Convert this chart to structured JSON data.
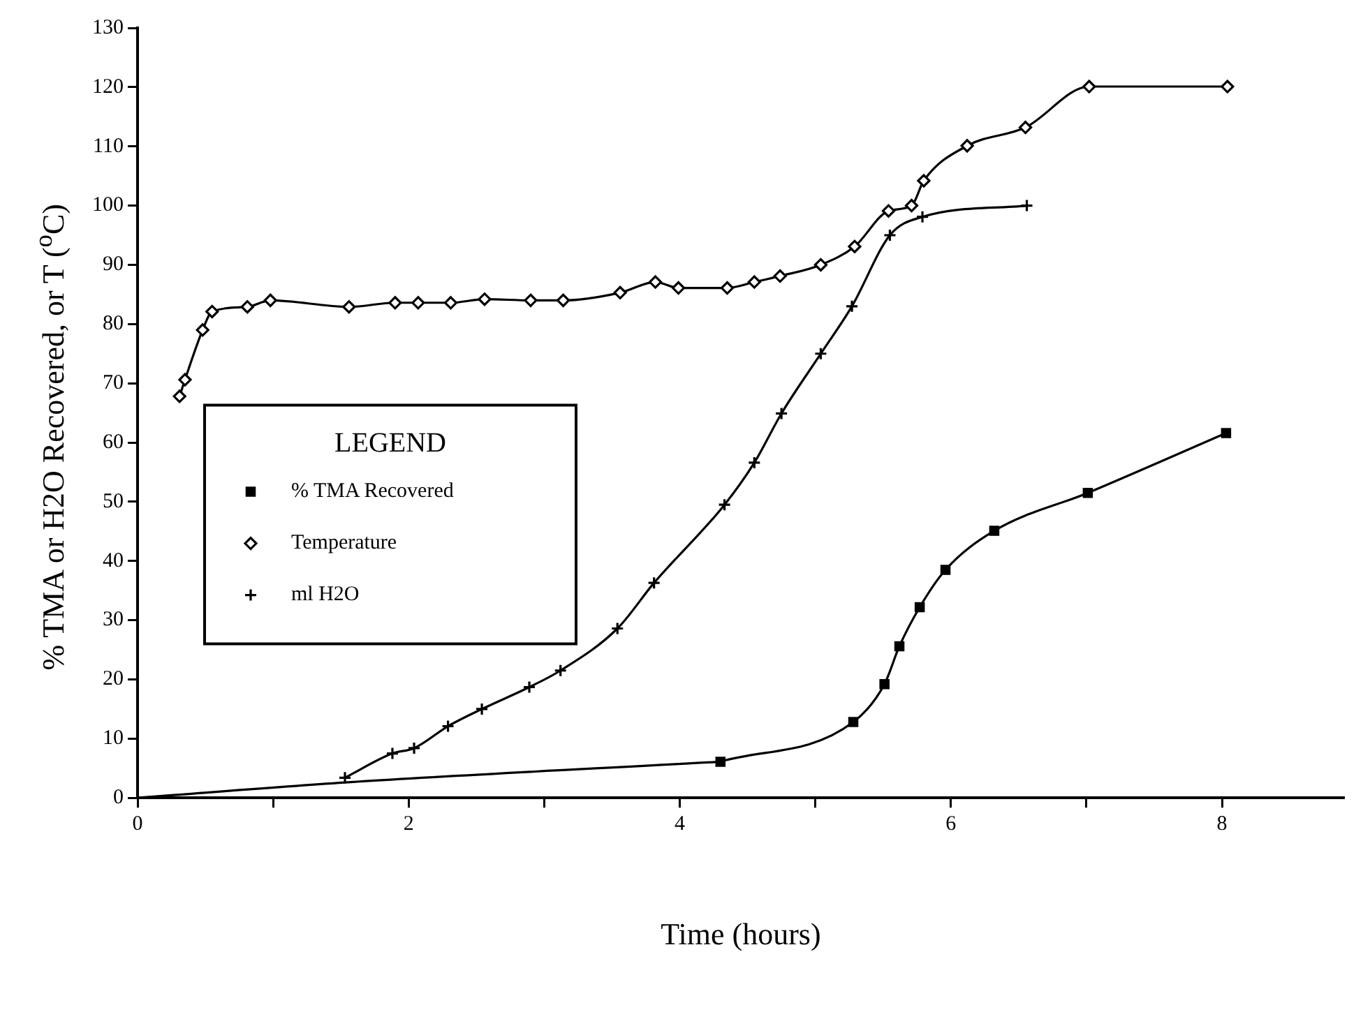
{
  "chart_data": {
    "type": "line",
    "xlabel": "Time (hours)",
    "ylabel": "% TMA or H2O Recovered, or T ($^{o}$C)",
    "legend_title": "LEGEND",
    "legend": "left",
    "grid": false,
    "xlim": [
      0,
      8.9
    ],
    "xticks": [
      0,
      {
        "value": 1,
        "label": null
      },
      2,
      {
        "value": 3,
        "label": null
      },
      4,
      {
        "value": 5,
        "label": null
      },
      6,
      {
        "value": 7,
        "label": null
      },
      8
    ],
    "ylim": [
      0,
      130
    ],
    "yticks": [
      0,
      10,
      20,
      30,
      40,
      50,
      60,
      70,
      80,
      90,
      100,
      110,
      120,
      130
    ],
    "series": [
      {
        "name": "% TMA Recovered",
        "color": "#000000",
        "marker": "square",
        "x": [
          4.3,
          5.28,
          5.51,
          5.62,
          5.77,
          5.96,
          6.32,
          7.01,
          8.03
        ],
        "values": [
          6.1,
          12.8,
          19.2,
          25.6,
          32.2,
          38.5,
          45.1,
          51.5,
          61.6
        ]
      },
      {
        "name": "Temperature",
        "color": "#000000",
        "marker": "diamond",
        "x": [
          0.31,
          0.35,
          0.48,
          0.55,
          0.81,
          0.98,
          1.56,
          1.9,
          2.07,
          2.31,
          2.56,
          2.9,
          3.14,
          3.56,
          3.82,
          3.99,
          4.35,
          4.55,
          4.74,
          5.04,
          5.29,
          5.54,
          5.71,
          5.8,
          6.12,
          6.55,
          7.02,
          8.04
        ],
        "values": [
          67.8,
          70.6,
          79.0,
          82.1,
          82.9,
          84.0,
          82.9,
          83.6,
          83.6,
          83.6,
          84.2,
          84.0,
          84.0,
          85.3,
          87.1,
          86.1,
          86.1,
          87.1,
          88.1,
          90.0,
          93.1,
          99.1,
          100,
          104.2,
          110.1,
          113.2,
          120.1,
          120.1
        ]
      },
      {
        "name": "ml H2O",
        "color": "#000000",
        "marker": "cross",
        "x": [
          1.53,
          1.88,
          2.04,
          2.29,
          2.54,
          2.89,
          3.12,
          3.54,
          3.81,
          4.33,
          4.55,
          4.75,
          5.04,
          5.27,
          5.55,
          5.79,
          6.56
        ],
        "values": [
          3.4,
          7.5,
          8.4,
          12.1,
          15.0,
          18.7,
          21.5,
          28.6,
          36.3,
          49.5,
          56.6,
          64.9,
          75.0,
          83.0,
          95.0,
          98.1,
          100
        ]
      },
      {
        "color": "#000000",
        "marker": "none",
        "x": [
          0,
          1.53,
          4.3
        ],
        "values": [
          0,
          2.6,
          6.1
        ]
      }
    ]
  }
}
